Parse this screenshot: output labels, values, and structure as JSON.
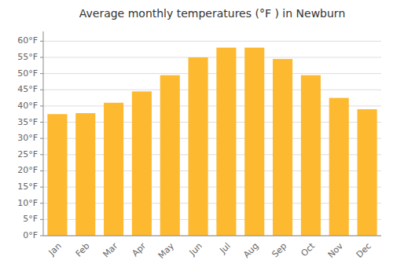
{
  "chart_data": {
    "type": "bar",
    "title": "Average monthly temperatures (°F ) in Newburn",
    "categories": [
      "Jan",
      "Feb",
      "Mar",
      "Apr",
      "May",
      "Jun",
      "Jul",
      "Aug",
      "Sep",
      "Oct",
      "Nov",
      "Dec"
    ],
    "values": [
      37.5,
      37.8,
      41.0,
      44.5,
      49.5,
      55.0,
      58.0,
      58.0,
      54.5,
      49.5,
      42.5,
      39.0
    ],
    "color": "#FDB930",
    "ylim": [
      0,
      63
    ],
    "yticks": [
      {
        "value": 0,
        "label": "0°F"
      },
      {
        "value": 5,
        "label": "5°F"
      },
      {
        "value": 10,
        "label": "10°F"
      },
      {
        "value": 15,
        "label": "15°F"
      },
      {
        "value": 20,
        "label": "20°F"
      },
      {
        "value": 25,
        "label": "25°F"
      },
      {
        "value": 30,
        "label": "30°F"
      },
      {
        "value": 35,
        "label": "35°F"
      },
      {
        "value": 40,
        "label": "40°F"
      },
      {
        "value": 45,
        "label": "45°F"
      },
      {
        "value": 50,
        "label": "50°F"
      },
      {
        "value": 55,
        "label": "55°F"
      },
      {
        "value": 60,
        "label": "60°F"
      }
    ],
    "grid": true
  }
}
